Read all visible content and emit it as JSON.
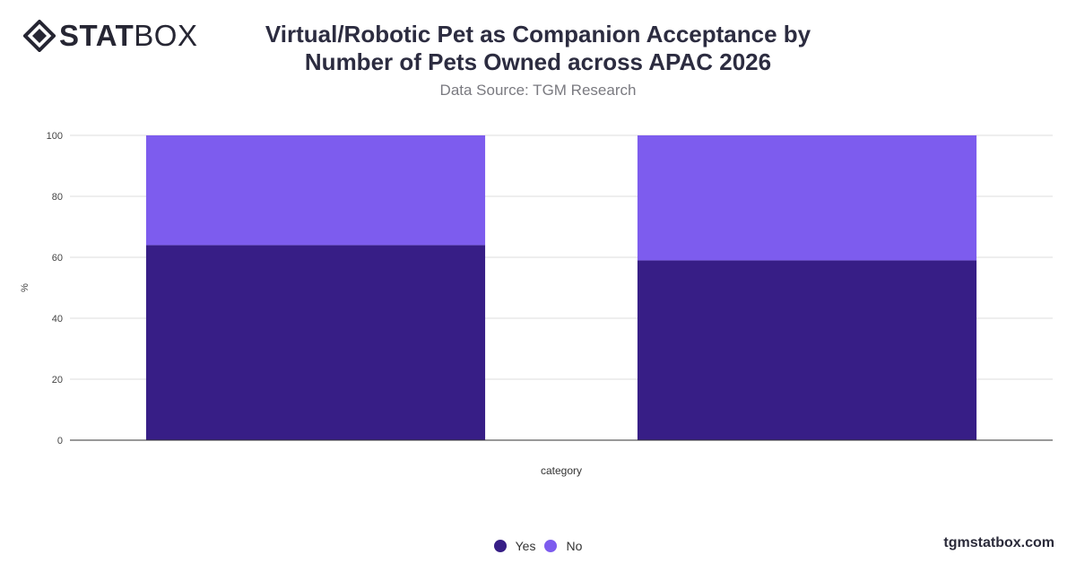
{
  "brand": {
    "logo_bold": "STAT",
    "logo_light": "BOX"
  },
  "header": {
    "title": "Virtual/Robotic Pet as Companion Acceptance by Number of Pets Owned across APAC 2026",
    "subtitle": "Data Source: TGM Research"
  },
  "footer": {
    "site": "tgmstatbox.com"
  },
  "colors": {
    "yes": "#371e86",
    "no": "#7d5cee",
    "grid": "#dddddd",
    "axis": "#333333"
  },
  "chart_data": {
    "type": "bar",
    "stacked": true,
    "categories": [
      "",
      ""
    ],
    "series": [
      {
        "name": "Yes",
        "values": [
          64,
          59
        ]
      },
      {
        "name": "No",
        "values": [
          36,
          41
        ]
      }
    ],
    "xlabel": "category",
    "ylabel": "%",
    "ylim": [
      0,
      100
    ],
    "yticks": [
      0,
      20,
      40,
      60,
      80,
      100
    ],
    "grid": true,
    "legend": "bottom-center"
  }
}
